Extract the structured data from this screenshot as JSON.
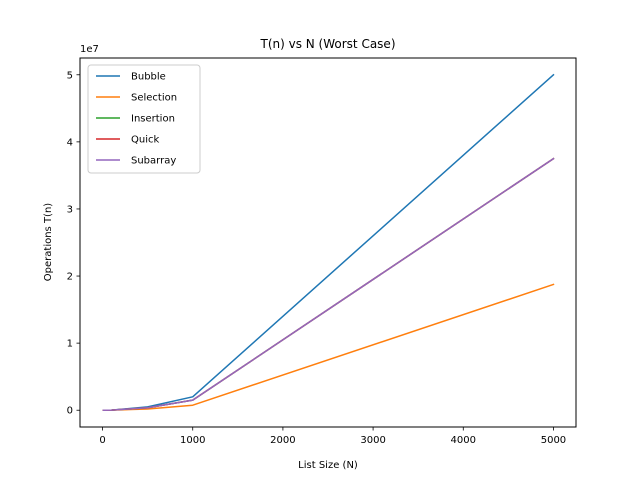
{
  "chart_data": {
    "type": "line",
    "title": "T(n) vs N (Worst Case)",
    "xlabel": "List Size (N)",
    "ylabel": "Operations T(n)",
    "y_offset_text": "1e7",
    "xlim": [
      -250,
      5250
    ],
    "ylim": [
      -2500000,
      52500000
    ],
    "x_ticks": [
      0,
      1000,
      2000,
      3000,
      4000,
      5000
    ],
    "x_tick_labels": [
      "0",
      "1000",
      "2000",
      "3000",
      "4000",
      "5000"
    ],
    "y_ticks": [
      0,
      10000000,
      20000000,
      30000000,
      40000000,
      50000000
    ],
    "y_tick_labels": [
      "0",
      "1",
      "2",
      "3",
      "4",
      "5"
    ],
    "grid": false,
    "legend_position": "top-left",
    "x": [
      10,
      100,
      500,
      1000,
      5000
    ],
    "series": [
      {
        "name": "Bubble",
        "color": "#1f77b4",
        "values": [
          200,
          20000,
          500000,
          2000000,
          50000000
        ]
      },
      {
        "name": "Selection",
        "color": "#ff7f0e",
        "values": [
          75,
          7500,
          187500,
          750000,
          18750000
        ]
      },
      {
        "name": "Insertion",
        "color": "#2ca02c",
        "values": [
          150,
          15000,
          375000,
          1500000,
          37500000
        ]
      },
      {
        "name": "Quick",
        "color": "#d62728",
        "values": [
          150,
          15000,
          375000,
          1500000,
          37500000
        ]
      },
      {
        "name": "Subarray",
        "color": "#9467bd",
        "values": [
          150,
          15000,
          375000,
          1500000,
          37500000
        ]
      }
    ]
  }
}
